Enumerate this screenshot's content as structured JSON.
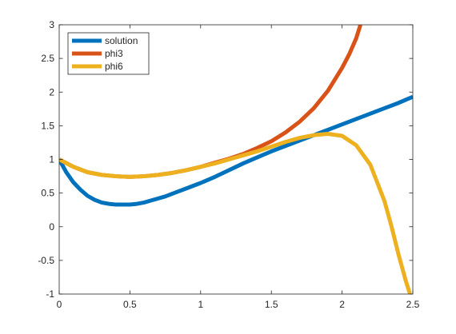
{
  "chart_data": {
    "type": "line",
    "title": "",
    "xlabel": "",
    "ylabel": "",
    "xlim": [
      0,
      2.5
    ],
    "ylim": [
      -1,
      3
    ],
    "xticks": [
      0,
      0.5,
      1,
      1.5,
      2,
      2.5
    ],
    "xtick_labels": [
      "0",
      "0.5",
      "1",
      "1.5",
      "2",
      "2.5"
    ],
    "yticks": [
      -1,
      -0.5,
      0,
      0.5,
      1,
      1.5,
      2,
      2.5,
      3
    ],
    "ytick_labels": [
      "-1",
      "-0.5",
      "0",
      "0.5",
      "1",
      "1.5",
      "2",
      "2.5",
      "3"
    ],
    "grid": false,
    "legend": {
      "placement": "top-left",
      "entries": [
        "solution",
        "phi3",
        "phi6"
      ]
    },
    "series": [
      {
        "name": "solution",
        "color": "#0072BD",
        "x": [
          0,
          0.05,
          0.1,
          0.15,
          0.2,
          0.25,
          0.3,
          0.35,
          0.4,
          0.45,
          0.5,
          0.55,
          0.6,
          0.65,
          0.7,
          0.75,
          0.8,
          0.85,
          0.9,
          0.95,
          1.0,
          1.1,
          1.2,
          1.3,
          1.4,
          1.5,
          1.6,
          1.7,
          1.8,
          1.9,
          2.0,
          2.1,
          2.2,
          2.3,
          2.4,
          2.5
        ],
        "y": [
          1.0,
          0.81,
          0.66,
          0.55,
          0.46,
          0.4,
          0.36,
          0.34,
          0.33,
          0.33,
          0.33,
          0.34,
          0.36,
          0.39,
          0.42,
          0.45,
          0.49,
          0.53,
          0.57,
          0.61,
          0.65,
          0.74,
          0.84,
          0.94,
          1.03,
          1.12,
          1.2,
          1.28,
          1.36,
          1.44,
          1.52,
          1.6,
          1.68,
          1.76,
          1.84,
          1.93
        ]
      },
      {
        "name": "phi3",
        "color": "#D95319",
        "x": [
          0,
          0.1,
          0.2,
          0.3,
          0.4,
          0.5,
          0.6,
          0.7,
          0.8,
          0.9,
          1.0,
          1.1,
          1.2,
          1.3,
          1.4,
          1.5,
          1.6,
          1.7,
          1.8,
          1.9,
          2.0,
          2.05,
          2.1,
          2.13
        ],
        "y": [
          1.0,
          0.89,
          0.81,
          0.77,
          0.75,
          0.74,
          0.75,
          0.77,
          0.8,
          0.84,
          0.89,
          0.95,
          1.01,
          1.08,
          1.17,
          1.27,
          1.4,
          1.56,
          1.76,
          2.02,
          2.36,
          2.56,
          2.8,
          3.0
        ]
      },
      {
        "name": "phi6",
        "color": "#EDB120",
        "x": [
          0,
          0.1,
          0.2,
          0.3,
          0.4,
          0.5,
          0.6,
          0.7,
          0.8,
          0.9,
          1.0,
          1.1,
          1.2,
          1.3,
          1.4,
          1.5,
          1.6,
          1.7,
          1.8,
          1.9,
          2.0,
          2.1,
          2.2,
          2.3,
          2.35,
          2.4,
          2.45,
          2.48
        ],
        "y": [
          1.0,
          0.89,
          0.81,
          0.77,
          0.75,
          0.74,
          0.75,
          0.77,
          0.8,
          0.84,
          0.89,
          0.94,
          1.0,
          1.06,
          1.12,
          1.19,
          1.26,
          1.32,
          1.36,
          1.38,
          1.35,
          1.21,
          0.92,
          0.38,
          0.0,
          -0.42,
          -0.8,
          -1.0
        ]
      }
    ]
  }
}
